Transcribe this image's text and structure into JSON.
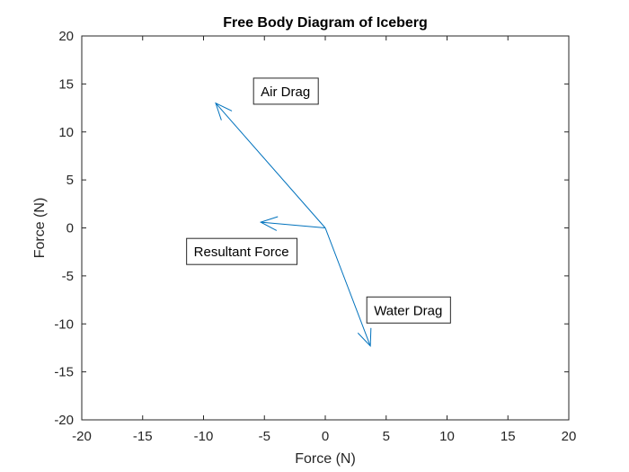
{
  "chart_data": {
    "type": "line",
    "title": "Free Body Diagram of Iceberg",
    "xlabel": "Force (N)",
    "ylabel": "Force (N)",
    "xlim": [
      -20,
      20
    ],
    "ylim": [
      -20,
      20
    ],
    "xticks": [
      -20,
      -15,
      -10,
      -5,
      0,
      5,
      10,
      15,
      20
    ],
    "yticks": [
      -20,
      -15,
      -10,
      -5,
      0,
      5,
      10,
      15,
      20
    ],
    "grid": false,
    "box": true,
    "line_color": "#0072BD",
    "vectors": [
      {
        "label": "Air Drag",
        "from": [
          0,
          0
        ],
        "to": [
          -9,
          13
        ]
      },
      {
        "label": "Water Drag",
        "from": [
          0,
          0
        ],
        "to": [
          3.7,
          -12.3
        ]
      },
      {
        "label": "Resultant Force",
        "from": [
          0,
          0
        ],
        "to": [
          -5.3,
          0.6
        ]
      }
    ],
    "annotations": [
      {
        "text": "Air Drag",
        "x": -5.3,
        "y": 14.2
      },
      {
        "text": "Resultant Force",
        "x": -10.8,
        "y": -2.5
      },
      {
        "text": "Water Drag",
        "x": 4,
        "y": -8.6
      }
    ]
  }
}
